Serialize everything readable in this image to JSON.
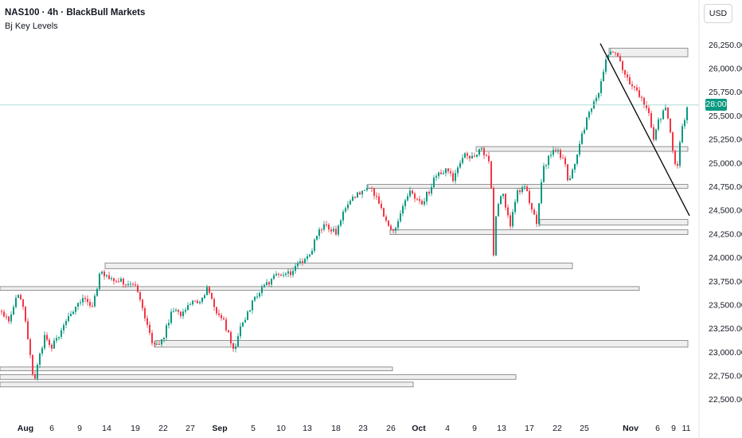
{
  "header": {
    "title": "NAS100 · 4h · BlackBull Markets",
    "indicator": "Bj Key Levels"
  },
  "toolbar": {
    "currency": "USD"
  },
  "price_label": {
    "text": "28:00",
    "color": "#089981"
  },
  "colors": {
    "up": "#089981",
    "down": "#f23645",
    "level_fill": "#efefef",
    "level_stroke": "#7a7a7a",
    "trendline": "#000000",
    "grid": "#f0f3fa",
    "axis_text": "#131722"
  },
  "chart_data": {
    "type": "candlestick",
    "title": "NAS100 · 4h · BlackBull Markets",
    "ylim": [
      22300,
      26400
    ],
    "y_ticks": [
      {
        "value": 22500,
        "label": "22,500.00"
      },
      {
        "value": 22750,
        "label": "22,750.00"
      },
      {
        "value": 23000,
        "label": "23,000.00"
      },
      {
        "value": 23250,
        "label": "23,250.00"
      },
      {
        "value": 23500,
        "label": "23,500.00"
      },
      {
        "value": 23750,
        "label": "23,750.00"
      },
      {
        "value": 24000,
        "label": "24,000.00"
      },
      {
        "value": 24250,
        "label": "24,250.00"
      },
      {
        "value": 24500,
        "label": "24,500.00"
      },
      {
        "value": 24750,
        "label": "24,750.00"
      },
      {
        "value": 25000,
        "label": "25,000.00"
      },
      {
        "value": 25250,
        "label": "25,250.00"
      },
      {
        "value": 25500,
        "label": "25,500.00"
      },
      {
        "value": 25750,
        "label": "25,750.00"
      },
      {
        "value": 26000,
        "label": "26,000.00"
      },
      {
        "value": 26250,
        "label": "26,250.00"
      }
    ],
    "x_ticks": [
      {
        "label": "Aug",
        "bold": true,
        "index": 32
      },
      {
        "label": "6",
        "bold": false,
        "index": 65
      },
      {
        "label": "9",
        "bold": false,
        "index": 100
      },
      {
        "label": "14",
        "bold": false,
        "index": 134
      },
      {
        "label": "19",
        "bold": false,
        "index": 170
      },
      {
        "label": "22",
        "bold": false,
        "index": 205
      },
      {
        "label": "27",
        "bold": false,
        "index": 239
      },
      {
        "label": "Sep",
        "bold": true,
        "index": 276
      },
      {
        "label": "5",
        "bold": false,
        "index": 318
      },
      {
        "label": "10",
        "bold": false,
        "index": 353
      },
      {
        "label": "13",
        "bold": false,
        "index": 386
      },
      {
        "label": "18",
        "bold": false,
        "index": 422
      },
      {
        "label": "23",
        "bold": false,
        "index": 456
      },
      {
        "label": "26",
        "bold": false,
        "index": 491
      },
      {
        "label": "Oct",
        "bold": true,
        "index": 526
      },
      {
        "label": "4",
        "bold": false,
        "index": 562
      },
      {
        "label": "9",
        "bold": false,
        "index": 596
      },
      {
        "label": "13",
        "bold": false,
        "index": 630
      },
      {
        "label": "17",
        "bold": false,
        "index": 665
      },
      {
        "label": "22",
        "bold": false,
        "index": 700
      },
      {
        "label": "25",
        "bold": false,
        "index": 734
      },
      {
        "label": "Nov",
        "bold": true,
        "index": 792
      },
      {
        "label": "6",
        "bold": false,
        "index": 826
      },
      {
        "label": "9",
        "bold": false,
        "index": 846
      },
      {
        "label": "11",
        "bold": false,
        "index": 862
      }
    ],
    "key_levels": [
      {
        "low": 26120,
        "high": 26210,
        "from": 765,
        "to": 864
      },
      {
        "low": 25120,
        "high": 25170,
        "from": 598,
        "to": 864
      },
      {
        "low": 24730,
        "high": 24770,
        "from": 462,
        "to": 864
      },
      {
        "low": 24340,
        "high": 24400,
        "from": 678,
        "to": 864
      },
      {
        "low": 24240,
        "high": 24290,
        "from": 490,
        "to": 864
      },
      {
        "low": 23880,
        "high": 23940,
        "from": 132,
        "to": 719
      },
      {
        "low": 23650,
        "high": 23690,
        "from": 0,
        "to": 803
      },
      {
        "low": 23050,
        "high": 23120,
        "from": 195,
        "to": 864
      },
      {
        "low": 22800,
        "high": 22840,
        "from": 0,
        "to": 493
      },
      {
        "low": 22710,
        "high": 22760,
        "from": 0,
        "to": 648
      },
      {
        "low": 22630,
        "high": 22680,
        "from": 0,
        "to": 519
      }
    ],
    "trendline": {
      "from": {
        "index": 754,
        "value": 26260
      },
      "to": {
        "index": 866,
        "value": 24440
      }
    },
    "current_price": 25610,
    "path": [
      [
        0,
        23430
      ],
      [
        14,
        23350
      ],
      [
        26,
        23660
      ],
      [
        34,
        23320
      ],
      [
        44,
        22680
      ],
      [
        58,
        23150
      ],
      [
        68,
        23050
      ],
      [
        82,
        23300
      ],
      [
        95,
        23450
      ],
      [
        108,
        23560
      ],
      [
        118,
        23450
      ],
      [
        128,
        23850
      ],
      [
        142,
        23790
      ],
      [
        152,
        23750
      ],
      [
        162,
        23720
      ],
      [
        176,
        23650
      ],
      [
        186,
        23300
      ],
      [
        196,
        23050
      ],
      [
        206,
        23110
      ],
      [
        218,
        23450
      ],
      [
        230,
        23380
      ],
      [
        240,
        23520
      ],
      [
        250,
        23500
      ],
      [
        262,
        23680
      ],
      [
        272,
        23450
      ],
      [
        282,
        23360
      ],
      [
        296,
        23000
      ],
      [
        306,
        23300
      ],
      [
        318,
        23500
      ],
      [
        332,
        23680
      ],
      [
        346,
        23780
      ],
      [
        360,
        23830
      ],
      [
        370,
        23850
      ],
      [
        380,
        23950
      ],
      [
        392,
        24050
      ],
      [
        404,
        24300
      ],
      [
        414,
        24330
      ],
      [
        424,
        24250
      ],
      [
        434,
        24500
      ],
      [
        446,
        24620
      ],
      [
        456,
        24700
      ],
      [
        466,
        24760
      ],
      [
        476,
        24600
      ],
      [
        486,
        24430
      ],
      [
        496,
        24260
      ],
      [
        508,
        24560
      ],
      [
        518,
        24700
      ],
      [
        530,
        24560
      ],
      [
        540,
        24680
      ],
      [
        550,
        24880
      ],
      [
        562,
        24920
      ],
      [
        572,
        24830
      ],
      [
        584,
        25070
      ],
      [
        596,
        25070
      ],
      [
        604,
        25130
      ],
      [
        612,
        25100
      ],
      [
        618,
        25000
      ],
      [
        622,
        24050
      ],
      [
        626,
        24560
      ],
      [
        634,
        24700
      ],
      [
        642,
        24320
      ],
      [
        652,
        24720
      ],
      [
        662,
        24730
      ],
      [
        670,
        24520
      ],
      [
        676,
        24320
      ],
      [
        684,
        24940
      ],
      [
        694,
        25100
      ],
      [
        702,
        25110
      ],
      [
        710,
        25050
      ],
      [
        716,
        24760
      ],
      [
        726,
        25050
      ],
      [
        736,
        25380
      ],
      [
        746,
        25630
      ],
      [
        756,
        25790
      ],
      [
        764,
        26100
      ],
      [
        770,
        26190
      ],
      [
        778,
        26160
      ],
      [
        786,
        25960
      ],
      [
        796,
        25820
      ],
      [
        806,
        25720
      ],
      [
        816,
        25560
      ],
      [
        822,
        25250
      ],
      [
        830,
        25450
      ],
      [
        838,
        25580
      ],
      [
        846,
        25200
      ],
      [
        852,
        24850
      ],
      [
        856,
        25240
      ],
      [
        866,
        25620
      ]
    ]
  }
}
